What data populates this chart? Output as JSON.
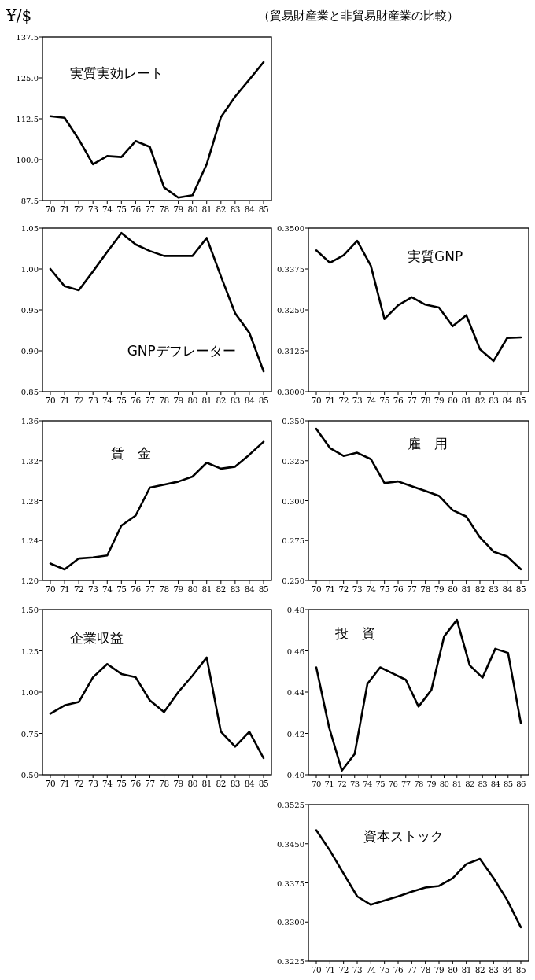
{
  "chart_data": [
    {
      "type": "line",
      "title": "実質実効レート",
      "ylabel": "¥/$",
      "subtitle": "（貿易財産業と非貿易財産業の比較）",
      "color": "#000000",
      "categories": [
        "70",
        "71",
        "72",
        "73",
        "74",
        "75",
        "76",
        "77",
        "78",
        "79",
        "80",
        "81",
        "82",
        "83",
        "84",
        "85"
      ],
      "values": [
        113.3,
        112.8,
        106.2,
        98.6,
        101.1,
        100.8,
        105.7,
        103.9,
        91.5,
        88.4,
        89.1,
        98.6,
        113.0,
        119.3,
        124.5,
        129.8
      ],
      "ylim": [
        87.5,
        137.5
      ],
      "yticks": [
        {
          "value": 87.5,
          "label": "87.5"
        },
        {
          "value": 100,
          "label": "100.0"
        },
        {
          "value": 112.5,
          "label": "112.5"
        },
        {
          "value": 125,
          "label": "125.0"
        },
        {
          "value": 137.5,
          "label": "137.5"
        }
      ],
      "marker": "none",
      "line_style": "solid"
    },
    {
      "type": "line",
      "title": "GNPデフレーター",
      "color": "#000000",
      "categories": [
        "70",
        "71",
        "72",
        "73",
        "74",
        "75",
        "76",
        "77",
        "78",
        "79",
        "80",
        "81",
        "82",
        "83",
        "84",
        "85"
      ],
      "values": [
        1.0,
        0.979,
        0.974,
        0.997,
        1.021,
        1.044,
        1.03,
        1.022,
        1.016,
        1.016,
        1.016,
        1.038,
        0.991,
        0.946,
        0.922,
        0.875
      ],
      "ylim": [
        0.85,
        1.05
      ],
      "yticks": [
        {
          "value": 0.85,
          "label": "0.85"
        },
        {
          "value": 0.9,
          "label": "0.90"
        },
        {
          "value": 0.95,
          "label": "0.95"
        },
        {
          "value": 1,
          "label": "1.00"
        },
        {
          "value": 1.05,
          "label": "1.05"
        }
      ],
      "marker": "none",
      "line_style": "solid"
    },
    {
      "type": "line",
      "title": "実質GNP",
      "color": "#000000",
      "categories": [
        "70",
        "71",
        "72",
        "73",
        "74",
        "75",
        "76",
        "77",
        "78",
        "79",
        "80",
        "81",
        "82",
        "83",
        "84",
        "85"
      ],
      "values": [
        0.3432,
        0.3394,
        0.3417,
        0.3461,
        0.3385,
        0.3222,
        0.3264,
        0.3289,
        0.3266,
        0.3257,
        0.32,
        0.3234,
        0.313,
        0.3094,
        0.3164,
        0.3166
      ],
      "ylim": [
        0.3,
        0.35
      ],
      "yticks": [
        {
          "value": 0.3,
          "label": "0.3000"
        },
        {
          "value": 0.3125,
          "label": "0.3125"
        },
        {
          "value": 0.325,
          "label": "0.3250"
        },
        {
          "value": 0.3375,
          "label": "0.3375"
        },
        {
          "value": 0.35,
          "label": "0.3500"
        }
      ],
      "marker": "none",
      "line_style": "solid"
    },
    {
      "type": "line",
      "title": "賃　金",
      "color": "#000000",
      "categories": [
        "70",
        "71",
        "72",
        "73",
        "74",
        "75",
        "76",
        "77",
        "78",
        "79",
        "80",
        "81",
        "82",
        "83",
        "84",
        "85"
      ],
      "values": [
        1.217,
        1.211,
        1.222,
        1.223,
        1.225,
        1.255,
        1.265,
        1.293,
        1.296,
        1.299,
        1.304,
        1.318,
        1.312,
        1.314,
        1.326,
        1.339
      ],
      "ylim": [
        1.2,
        1.36
      ],
      "yticks": [
        {
          "value": 1.2,
          "label": "1.20"
        },
        {
          "value": 1.24,
          "label": "1.24"
        },
        {
          "value": 1.28,
          "label": "1.28"
        },
        {
          "value": 1.32,
          "label": "1.32"
        },
        {
          "value": 1.36,
          "label": "1.36"
        }
      ],
      "marker": "none",
      "line_style": "solid"
    },
    {
      "type": "line",
      "title": "雇　用",
      "color": "#000000",
      "categories": [
        "70",
        "71",
        "72",
        "73",
        "74",
        "75",
        "76",
        "77",
        "78",
        "79",
        "80",
        "81",
        "82",
        "83",
        "84",
        "85"
      ],
      "values": [
        0.345,
        0.333,
        0.328,
        0.33,
        0.326,
        0.311,
        0.312,
        0.309,
        0.306,
        0.303,
        0.294,
        0.29,
        0.277,
        0.268,
        0.265,
        0.257
      ],
      "ylim": [
        0.25,
        0.35
      ],
      "yticks": [
        {
          "value": 0.25,
          "label": "0.250"
        },
        {
          "value": 0.275,
          "label": "0.275"
        },
        {
          "value": 0.3,
          "label": "0.300"
        },
        {
          "value": 0.325,
          "label": "0.325"
        },
        {
          "value": 0.35,
          "label": "0.350"
        }
      ],
      "marker": "none",
      "line_style": "solid"
    },
    {
      "type": "line",
      "title": "企業収益",
      "color": "#000000",
      "categories": [
        "70",
        "71",
        "72",
        "73",
        "74",
        "75",
        "76",
        "77",
        "78",
        "79",
        "80",
        "81",
        "82",
        "83",
        "84",
        "85"
      ],
      "values": [
        0.87,
        0.92,
        0.94,
        1.09,
        1.17,
        1.11,
        1.09,
        0.95,
        0.88,
        1.0,
        1.1,
        1.21,
        0.76,
        0.67,
        0.76,
        0.6
      ],
      "ylim": [
        0.5,
        1.5
      ],
      "yticks": [
        {
          "value": 0.5,
          "label": "0.50"
        },
        {
          "value": 0.75,
          "label": "0.75"
        },
        {
          "value": 1,
          "label": "1.00"
        },
        {
          "value": 1.25,
          "label": "1.25"
        },
        {
          "value": 1.5,
          "label": "1.50"
        }
      ],
      "marker": "none",
      "line_style": "solid"
    },
    {
      "type": "line",
      "title": "投　資",
      "color": "#000000",
      "categories": [
        "70",
        "71",
        "72",
        "73",
        "74",
        "75",
        "76",
        "77",
        "78",
        "79",
        "80",
        "81",
        "82",
        "83",
        "84",
        "85",
        "86"
      ],
      "values": [
        0.452,
        0.423,
        0.402,
        0.41,
        0.444,
        0.452,
        0.449,
        0.446,
        0.433,
        0.441,
        0.467,
        0.475,
        0.453,
        0.447,
        0.461,
        0.459,
        0.425
      ],
      "ylim": [
        0.4,
        0.48
      ],
      "yticks": [
        {
          "value": 0.4,
          "label": "0.40"
        },
        {
          "value": 0.42,
          "label": "0.42"
        },
        {
          "value": 0.44,
          "label": "0.44"
        },
        {
          "value": 0.46,
          "label": "0.46"
        },
        {
          "value": 0.48,
          "label": "0.48"
        }
      ],
      "marker": "none",
      "line_style": "solid"
    },
    {
      "type": "line",
      "title": "資本ストック",
      "color": "#000000",
      "categories": [
        "70",
        "71",
        "72",
        "73",
        "74",
        "75",
        "76",
        "77",
        "78",
        "79",
        "80",
        "81",
        "82",
        "83",
        "84",
        "85"
      ],
      "values": [
        0.3476,
        0.3437,
        0.3393,
        0.3349,
        0.3333,
        0.3341,
        0.3349,
        0.3358,
        0.3366,
        0.3369,
        0.3384,
        0.3411,
        0.3421,
        0.3384,
        0.3342,
        0.329
      ],
      "ylim": [
        0.3225,
        0.3525
      ],
      "yticks": [
        {
          "value": 0.3225,
          "label": "0.3225"
        },
        {
          "value": 0.33,
          "label": "0.3300"
        },
        {
          "value": 0.3375,
          "label": "0.3375"
        },
        {
          "value": 0.345,
          "label": "0.3450"
        },
        {
          "value": 0.3525,
          "label": "0.3525"
        }
      ],
      "marker": "none",
      "line_style": "solid"
    }
  ]
}
